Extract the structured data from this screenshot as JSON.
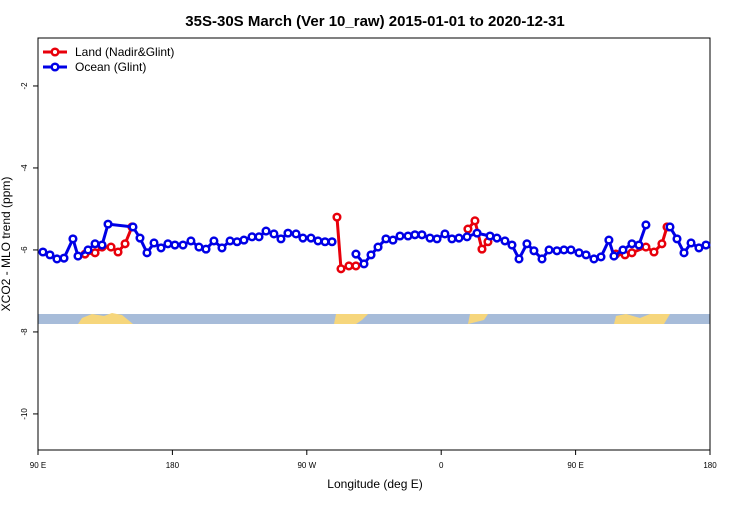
{
  "chart_data": {
    "type": "line",
    "title": "35S-30S March (Ver 10_raw)   2015-01-01 to 2020-12-31",
    "x_label": "Longitude (deg E)",
    "y_label": "XCO2 - MLO trend (ppm)",
    "xlim": [
      90,
      540
    ],
    "xticks": [
      {
        "value": 90,
        "label": "90 E"
      },
      {
        "value": 180,
        "label": "180"
      },
      {
        "value": 270,
        "label": "90 W"
      },
      {
        "value": 360,
        "label": "0"
      },
      {
        "value": 450,
        "label": "90 E"
      },
      {
        "value": 540,
        "label": "180"
      }
    ],
    "ylim": [
      -10.88,
      -0.83
    ],
    "yticks": [
      -2,
      -4,
      -6,
      -8,
      -10
    ],
    "legend": "top-left",
    "series": [
      {
        "name": "Land (Nadir&Glint)",
        "color": "#e8000b",
        "x": [
          121.5,
          128.2,
          132.9,
          138.9,
          143.6,
          148.3,
          152.9,
          null,
          290.2,
          292.9,
          298.2,
          302.9,
          null,
          377.9,
          382.6,
          387.3,
          391.3,
          null,
          477.0,
          483.1,
          487.7,
          497.1,
          502.5,
          507.8,
          511.2
        ],
        "values": [
          -6.1,
          -6.07,
          -5.93,
          -5.93,
          -6.05,
          -5.85,
          -5.44,
          null,
          -5.2,
          -6.46,
          -6.39,
          -6.39,
          null,
          -5.49,
          -5.29,
          -5.98,
          -5.8,
          null,
          -6.1,
          -6.12,
          -6.07,
          -5.93,
          -6.05,
          -5.85,
          -5.44
        ]
      },
      {
        "name": "Ocean (Glint)",
        "color": "#0000e6",
        "x": [
          93.3,
          98.0,
          102.7,
          107.4,
          113.4,
          116.8,
          123.5,
          128.2,
          132.9,
          136.9,
          153.6,
          158.3,
          163.0,
          167.7,
          172.4,
          177.0,
          181.7,
          187.1,
          192.4,
          197.8,
          202.5,
          207.8,
          213.2,
          218.6,
          223.3,
          227.9,
          233.3,
          238.0,
          242.7,
          248.0,
          252.7,
          257.4,
          262.8,
          267.4,
          272.8,
          277.5,
          282.2,
          286.9,
          null,
          302.9,
          308.3,
          313.0,
          317.7,
          323.0,
          327.7,
          332.4,
          337.8,
          342.4,
          347.1,
          352.5,
          357.2,
          362.5,
          367.2,
          371.9,
          377.3,
          384.0,
          392.7,
          397.3,
          402.7,
          407.4,
          412.1,
          417.4,
          422.1,
          427.5,
          432.2,
          437.5,
          442.2,
          446.9,
          452.3,
          457.0,
          462.3,
          467.0,
          472.3,
          475.7,
          481.7,
          487.7,
          492.4,
          497.1,
          null,
          513.2,
          517.9,
          522.6,
          527.3,
          532.6,
          537.3
        ],
        "values": [
          -6.05,
          -6.12,
          -6.22,
          -6.2,
          -5.73,
          -6.15,
          -6.0,
          -5.85,
          -5.88,
          -5.37,
          -5.44,
          -5.71,
          -6.07,
          -5.83,
          -5.95,
          -5.85,
          -5.88,
          -5.88,
          -5.78,
          -5.93,
          -5.98,
          -5.78,
          -5.95,
          -5.78,
          -5.8,
          -5.76,
          -5.68,
          -5.68,
          -5.54,
          -5.61,
          -5.73,
          -5.59,
          -5.61,
          -5.71,
          -5.71,
          -5.78,
          -5.8,
          -5.8,
          null,
          -6.1,
          -6.34,
          -6.12,
          -5.93,
          -5.73,
          -5.76,
          -5.66,
          -5.66,
          -5.63,
          -5.63,
          -5.71,
          -5.73,
          -5.61,
          -5.73,
          -5.71,
          -5.68,
          -5.59,
          -5.66,
          -5.71,
          -5.78,
          -5.88,
          -6.22,
          -5.85,
          -6.02,
          -6.22,
          -6.0,
          -6.02,
          -6.0,
          -6.0,
          -6.07,
          -6.12,
          -6.22,
          -6.17,
          -5.76,
          -6.15,
          -6.0,
          -5.85,
          -5.88,
          -5.39,
          null,
          -5.44,
          -5.73,
          -6.07,
          -5.83,
          -5.95,
          -5.88
        ]
      }
    ]
  }
}
